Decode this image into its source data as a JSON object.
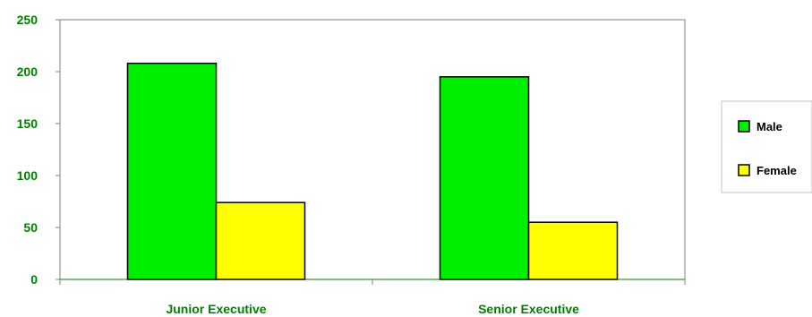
{
  "chart_data": {
    "type": "bar",
    "categories": [
      "Junior Executive",
      "Senior Executive"
    ],
    "series": [
      {
        "name": "Male",
        "values": [
          208,
          195
        ],
        "color": "#00ee00"
      },
      {
        "name": "Female",
        "values": [
          74,
          55
        ],
        "color": "#ffff00"
      }
    ],
    "ylim": [
      0,
      250
    ],
    "yticks": [
      0,
      50,
      100,
      150,
      200,
      250
    ],
    "grid": false,
    "legend_position": "right",
    "axis_label_color": "#008000",
    "bar_edge_color": "#000000"
  }
}
